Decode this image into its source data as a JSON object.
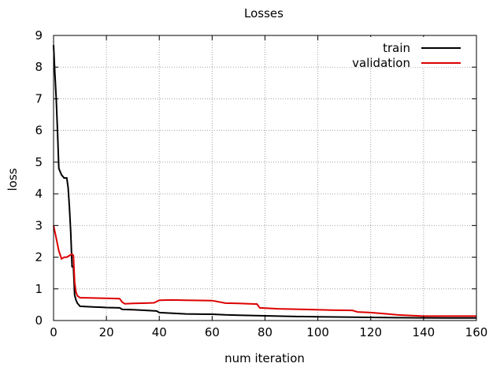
{
  "chart_data": {
    "type": "line",
    "title": "Losses",
    "xlabel": "num iteration",
    "ylabel": "loss",
    "xlim": [
      0,
      160
    ],
    "ylim": [
      0,
      9
    ],
    "xticks": [
      0,
      20,
      40,
      60,
      80,
      100,
      120,
      140,
      160
    ],
    "yticks": [
      0,
      1,
      2,
      3,
      4,
      5,
      6,
      7,
      8,
      9
    ],
    "grid": true,
    "legend_position": "top-right",
    "series": [
      {
        "name": "train",
        "color": "#000000",
        "points": [
          [
            0,
            8.7
          ],
          [
            0.5,
            7.8
          ],
          [
            1,
            7.0
          ],
          [
            1.5,
            6.0
          ],
          [
            2,
            4.8
          ],
          [
            3,
            4.6
          ],
          [
            4,
            4.5
          ],
          [
            5,
            4.5
          ],
          [
            5.5,
            4.2
          ],
          [
            6,
            3.6
          ],
          [
            6.5,
            2.8
          ],
          [
            7,
            1.7
          ],
          [
            7.5,
            1.7
          ],
          [
            8,
            0.8
          ],
          [
            8.5,
            0.65
          ],
          [
            9,
            0.55
          ],
          [
            10,
            0.45
          ],
          [
            12,
            0.44
          ],
          [
            15,
            0.43
          ],
          [
            18,
            0.42
          ],
          [
            20,
            0.41
          ],
          [
            25,
            0.4
          ],
          [
            26,
            0.35
          ],
          [
            30,
            0.34
          ],
          [
            35,
            0.32
          ],
          [
            39,
            0.3
          ],
          [
            40,
            0.25
          ],
          [
            45,
            0.23
          ],
          [
            50,
            0.21
          ],
          [
            60,
            0.2
          ],
          [
            65,
            0.18
          ],
          [
            70,
            0.17
          ],
          [
            80,
            0.15
          ],
          [
            90,
            0.13
          ],
          [
            100,
            0.12
          ],
          [
            110,
            0.11
          ],
          [
            120,
            0.1
          ],
          [
            130,
            0.09
          ],
          [
            140,
            0.085
          ],
          [
            150,
            0.08
          ],
          [
            160,
            0.08
          ]
        ]
      },
      {
        "name": "validation",
        "color": "#dd0000",
        "points": [
          [
            0,
            3.0
          ],
          [
            1,
            2.6
          ],
          [
            2,
            2.2
          ],
          [
            3,
            1.95
          ],
          [
            4,
            2.0
          ],
          [
            5,
            2.0
          ],
          [
            6,
            2.05
          ],
          [
            7,
            2.1
          ],
          [
            7.5,
            2.05
          ],
          [
            8,
            1.2
          ],
          [
            8.5,
            0.9
          ],
          [
            9,
            0.78
          ],
          [
            10,
            0.72
          ],
          [
            15,
            0.71
          ],
          [
            20,
            0.7
          ],
          [
            25,
            0.69
          ],
          [
            26,
            0.58
          ],
          [
            27,
            0.53
          ],
          [
            30,
            0.54
          ],
          [
            35,
            0.55
          ],
          [
            38,
            0.56
          ],
          [
            40,
            0.64
          ],
          [
            45,
            0.65
          ],
          [
            50,
            0.64
          ],
          [
            60,
            0.63
          ],
          [
            65,
            0.55
          ],
          [
            70,
            0.54
          ],
          [
            77,
            0.52
          ],
          [
            78,
            0.4
          ],
          [
            85,
            0.37
          ],
          [
            95,
            0.35
          ],
          [
            105,
            0.33
          ],
          [
            113,
            0.32
          ],
          [
            115,
            0.27
          ],
          [
            120,
            0.25
          ],
          [
            125,
            0.22
          ],
          [
            130,
            0.18
          ],
          [
            135,
            0.16
          ],
          [
            140,
            0.14
          ],
          [
            150,
            0.14
          ],
          [
            160,
            0.14
          ]
        ]
      }
    ]
  }
}
